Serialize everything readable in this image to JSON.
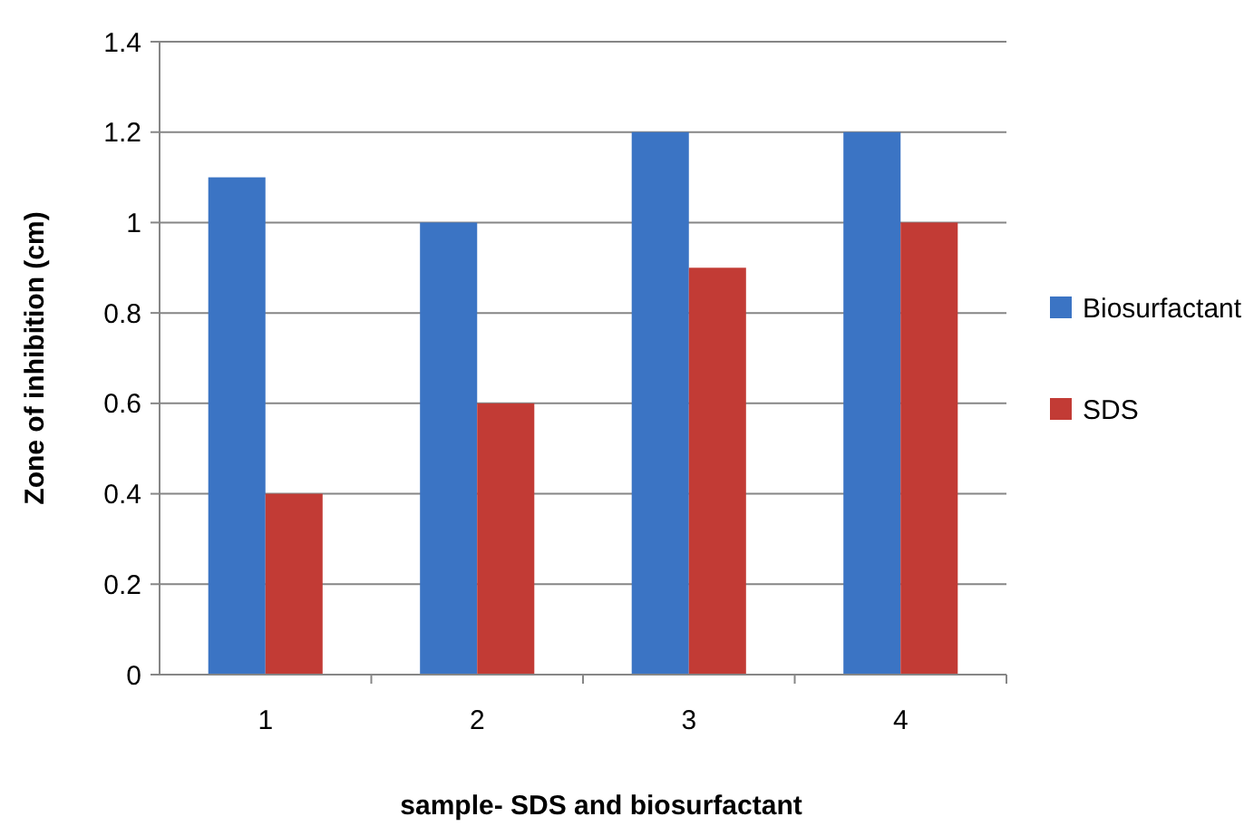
{
  "chart_data": {
    "type": "bar",
    "xlabel": "sample- SDS and biosurfactant",
    "ylabel": "Zone of inhibition (cm)",
    "categories": [
      "1",
      "2",
      "3",
      "4"
    ],
    "series": [
      {
        "name": "Biosurfactant",
        "color": "#3b74c4",
        "values": [
          1.1,
          1,
          1.2,
          1.2
        ]
      },
      {
        "name": "SDS",
        "color": "#c23b35",
        "values": [
          0.4,
          0.6,
          0.9,
          1
        ]
      }
    ],
    "ylim": [
      0,
      1.4
    ],
    "yticks": [
      0,
      0.2,
      0.4,
      0.6,
      0.8,
      1,
      1.2,
      1.4
    ],
    "grid": "y",
    "legend": "right"
  }
}
